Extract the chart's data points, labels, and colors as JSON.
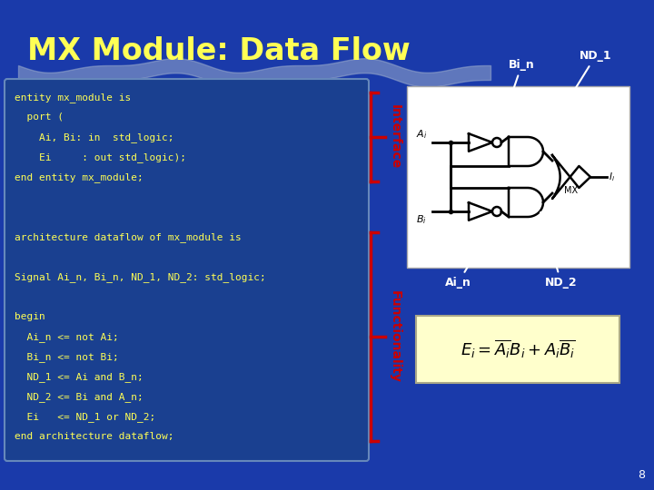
{
  "title": "MX Module: Data Flow",
  "title_color": "#FFFF55",
  "bg_color": "#1a3aaa",
  "slide_number": "8",
  "code_block_bg": "#1a4090",
  "code_text_color": "#FFFF55",
  "code_lines": [
    "entity mx_module is",
    "  port (",
    "    Ai, Bi: in  std_logic;",
    "    Ei     : out std_logic);",
    "end entity mx_module;",
    "",
    "",
    "architecture dataflow of mx_module is",
    "",
    "Signal Ai_n, Bi_n, ND_1, ND_2: std_logic;",
    "",
    "begin",
    "  Ai_n <= not Ai;",
    "  Bi_n <= not Bi;",
    "  ND_1 <= Ai and B_n;",
    "  ND_2 <= Bi and A_n;",
    "  Ei   <= ND_1 or ND_2;",
    "end architecture dataflow;"
  ],
  "interface_lines": [
    0,
    4
  ],
  "arch_lines": [
    7,
    17
  ],
  "label_interface": "Interface",
  "label_functionality": "Functionality",
  "label_color": "#cc0000",
  "formula_box_color": "#FFFFCC",
  "watermark_color": "#99aacc"
}
